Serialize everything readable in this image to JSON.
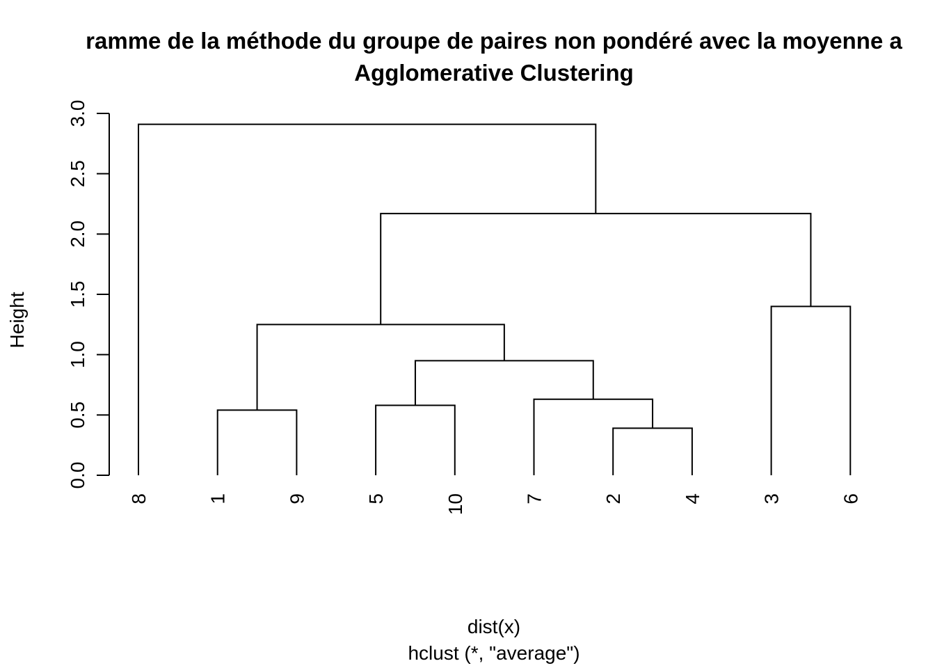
{
  "chart_data": {
    "type": "dendrogram",
    "title_line1": "ramme de la méthode du groupe de paires non pondéré avec la moyenne a",
    "title_line2": "Agglomerative Clustering",
    "xlabel": "dist(x)",
    "sub_label": "hclust (*, \"average\")",
    "ylabel": "Height",
    "ylim": [
      0,
      3.0
    ],
    "yticks": [
      "0.0",
      "0.5",
      "1.0",
      "1.5",
      "2.0",
      "2.5",
      "3.0"
    ],
    "leaf_order": [
      "8",
      "1",
      "9",
      "5",
      "10",
      "7",
      "2",
      "4",
      "3",
      "6"
    ],
    "merges": [
      {
        "left": "2",
        "right": "4",
        "height": 0.39
      },
      {
        "left": "1",
        "right": "9",
        "height": 0.54
      },
      {
        "left": "5",
        "right": "10",
        "height": 0.58
      },
      {
        "left": "7",
        "right": "(2,4)",
        "height": 0.63
      },
      {
        "left": "(5,10)",
        "right": "(7,(2,4))",
        "height": 0.95
      },
      {
        "left": "(1,9)",
        "right": "((5,10),(7,(2,4)))",
        "height": 1.25
      },
      {
        "left": "3",
        "right": "6",
        "height": 1.4
      },
      {
        "left": "((1,9),((5,10),(7,(2,4))))",
        "right": "(3,6)",
        "height": 2.17
      },
      {
        "left": "8",
        "right": "(((1,9),((5,10),(7,(2,4)))),(3,6))",
        "height": 2.91
      }
    ]
  }
}
